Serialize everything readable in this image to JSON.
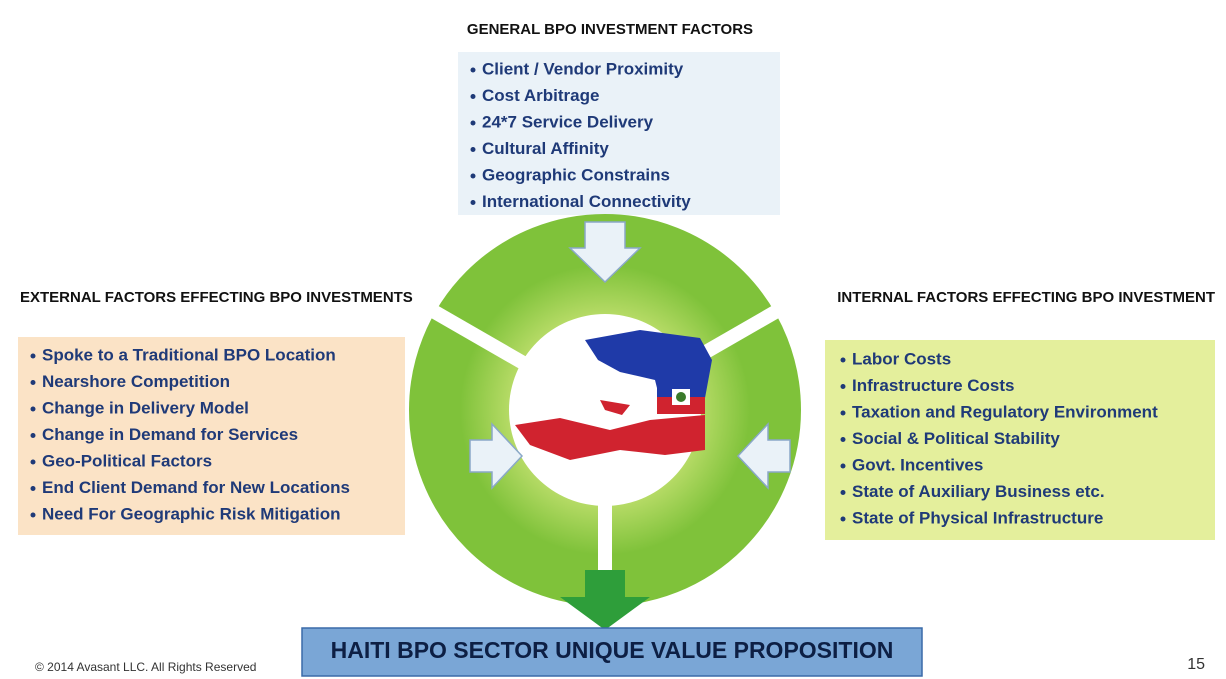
{
  "top": {
    "title": "GENERAL BPO INVESTMENT FACTORS",
    "items": [
      "Client / Vendor Proximity",
      "Cost Arbitrage",
      "24*7 Service Delivery",
      "Cultural Affinity",
      "Geographic Constrains",
      "International Connectivity"
    ]
  },
  "left": {
    "title": "EXTERNAL FACTORS EFFECTING BPO INVESTMENTS",
    "items": [
      "Spoke to a Traditional BPO Location",
      "Nearshore Competition",
      "Change in Delivery Model",
      "Change in Demand for Services",
      "Geo-Political Factors",
      "End Client Demand for New Locations",
      "Need For Geographic Risk Mitigation"
    ]
  },
  "right": {
    "title": "INTERNAL FACTORS EFFECTING BPO INVESTMENT",
    "items": [
      "Labor Costs",
      "Infrastructure Costs",
      "Taxation and Regulatory Environment",
      "Social & Political Stability",
      "Govt. Incentives",
      "State of Auxiliary Business etc.",
      "State of Physical Infrastructure"
    ]
  },
  "result": "HAITI BPO SECTOR UNIQUE VALUE PROPOSITION",
  "footer": "© 2014 Avasant LLC. All Rights Reserved",
  "page_number": "15"
}
